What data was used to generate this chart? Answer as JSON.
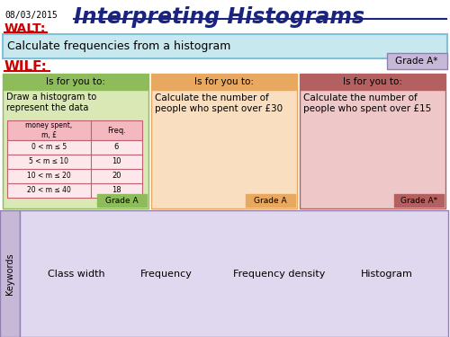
{
  "date": "08/03/2015",
  "title": "Interpreting Histograms",
  "walt_label": "WALT:",
  "walt_text": "Calculate frequencies from a histogram",
  "wilf_label": "WILF:",
  "grade_astar_top": "Grade A*",
  "boxes": [
    {
      "header": "Is for you to:",
      "header_color": "#8fbc5a",
      "body_color": "#d9e8b4",
      "border_color": "#8fbc5a",
      "content": "Draw a histogram to\nrepresent the data",
      "grade": "Grade A",
      "grade_color": "#8fbc5a",
      "has_table": true
    },
    {
      "header": "Is for you to:",
      "header_color": "#e8a860",
      "body_color": "#f9dfc0",
      "border_color": "#e8a860",
      "content": "Calculate the number of\npeople who spent over £30",
      "grade": "Grade A",
      "grade_color": "#e8a860",
      "has_table": false
    },
    {
      "header": "Is for you to:",
      "header_color": "#b56060",
      "body_color": "#eec8c8",
      "border_color": "#b56060",
      "content": "Calculate the number of\npeople who spent over £15",
      "grade": "Grade A*",
      "grade_color": "#b56060",
      "has_table": false
    }
  ],
  "table_headers": [
    "money spent,\nm, £",
    "Freq."
  ],
  "table_rows": [
    [
      "0 < m ≤ 5",
      "6"
    ],
    [
      "5 < m ≤ 10",
      "10"
    ],
    [
      "10 < m ≤ 20",
      "20"
    ],
    [
      "20 < m ≤ 40",
      "18"
    ]
  ],
  "table_header_color": "#f4b8c0",
  "table_row_color": "#fce8ea",
  "keywords": [
    "Class width",
    "Frequency",
    "Frequency density",
    "Histogram"
  ],
  "keyword_bg": "#c8b8d8",
  "keyword_area_bg": "#e0d8ee",
  "walt_box_color": "#c8e8f0",
  "grade_astar_color": "#c8b8d8",
  "title_color": "#1a237e",
  "walt_color": "#cc0000",
  "wilf_color": "#cc0000",
  "bg_color": "#ffffff"
}
